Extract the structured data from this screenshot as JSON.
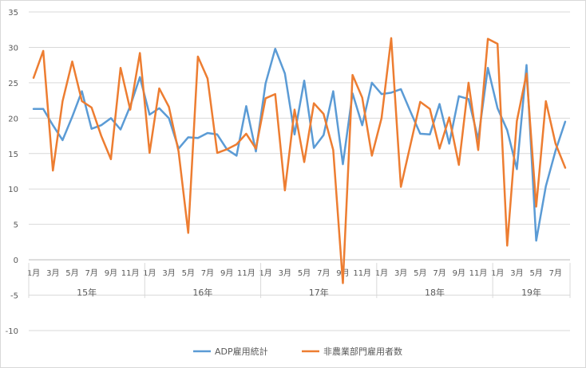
{
  "chart_data": {
    "type": "line",
    "title": "",
    "xlabel": "",
    "ylabel": "",
    "ylim": [
      -10,
      35
    ],
    "yticks": [
      -10,
      -5,
      0,
      5,
      10,
      15,
      20,
      25,
      30,
      35
    ],
    "grid": true,
    "legend_position": "bottom",
    "month_labels": [
      "1月",
      "3月",
      "5月",
      "7月",
      "9月",
      "11月",
      "1月",
      "3月",
      "5月",
      "7月",
      "9月",
      "11月",
      "1月",
      "3月",
      "5月",
      "7月",
      "9月",
      "11月",
      "1月",
      "3月",
      "5月",
      "7月",
      "9月",
      "11月",
      "1月",
      "3月",
      "5月",
      "7月"
    ],
    "years": [
      {
        "label": "15年",
        "months": 12
      },
      {
        "label": "16年",
        "months": 12
      },
      {
        "label": "17年",
        "months": 12
      },
      {
        "label": "18年",
        "months": 12
      },
      {
        "label": "19年",
        "months": 8
      }
    ],
    "series": [
      {
        "name": "ADP雇用統計",
        "color": "#5B9BD5",
        "values": [
          21.3,
          21.3,
          19.0,
          16.9,
          20.2,
          23.8,
          18.5,
          19.0,
          20.0,
          18.4,
          21.7,
          25.8,
          20.5,
          21.4,
          20.0,
          15.7,
          17.3,
          17.2,
          17.9,
          17.7,
          15.6,
          14.7,
          21.7,
          15.3,
          24.9,
          29.8,
          26.3,
          17.7,
          25.3,
          15.8,
          17.6,
          23.8,
          13.5,
          23.5,
          19.0,
          25.0,
          23.4,
          23.6,
          24.1,
          20.9,
          17.8,
          17.7,
          22.0,
          16.4,
          23.1,
          22.7,
          17.0,
          27.1,
          21.4,
          18.3,
          12.8,
          27.5,
          2.7,
          10.4,
          15.4,
          19.5
        ]
      },
      {
        "name": "非農業部門雇用者数",
        "color": "#ED7D31",
        "values": [
          25.7,
          29.5,
          12.6,
          22.4,
          28.0,
          22.4,
          21.5,
          17.5,
          14.2,
          27.1,
          21.2,
          29.2,
          15.1,
          24.2,
          21.6,
          15.3,
          3.8,
          28.7,
          25.6,
          15.1,
          15.6,
          16.3,
          17.8,
          15.7,
          22.8,
          23.4,
          9.8,
          21.2,
          13.8,
          22.1,
          20.6,
          15.5,
          -3.3,
          26.1,
          22.9,
          14.7,
          20.0,
          31.3,
          10.3,
          16.3,
          22.3,
          21.3,
          15.7,
          20.1,
          13.4,
          25.0,
          15.5,
          31.2,
          30.5,
          2.0,
          19.6,
          26.3,
          7.5,
          22.4,
          16.4,
          13.0
        ]
      }
    ]
  }
}
